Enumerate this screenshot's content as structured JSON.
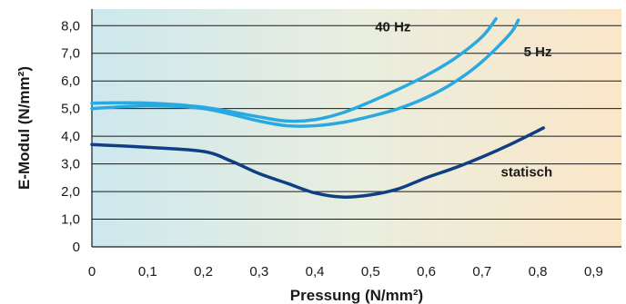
{
  "chart_data": {
    "type": "line",
    "xlabel": "Pressung (N/mm²)",
    "ylabel": "E-Modul (N/mm²)",
    "xlim": [
      0,
      0.95
    ],
    "ylim": [
      0,
      8.6
    ],
    "x_ticks": [
      0,
      0.1,
      0.2,
      0.3,
      0.4,
      0.5,
      0.6,
      0.7,
      0.8,
      0.9
    ],
    "x_tick_labels": [
      "0",
      "0,1",
      "0,2",
      "0,3",
      "0,4",
      "0,5",
      "0,6",
      "0,7",
      "0,8",
      "0,9"
    ],
    "y_ticks": [
      0,
      1,
      2,
      3,
      4,
      5,
      6,
      7,
      8
    ],
    "y_tick_labels": [
      "0",
      "1,0",
      "2,0",
      "3,0",
      "4,0",
      "5,0",
      "6,0",
      "7,0",
      "8,0"
    ],
    "grid": "horizontal",
    "background": "gradient from light blue (left) to light orange (right)",
    "series": [
      {
        "name": "40 Hz",
        "color": "#29a9e0",
        "x": [
          0,
          0.1,
          0.2,
          0.3,
          0.35,
          0.4,
          0.45,
          0.5,
          0.55,
          0.6,
          0.65,
          0.7,
          0.725
        ],
        "y": [
          5.2,
          5.2,
          5.05,
          4.7,
          4.55,
          4.6,
          4.85,
          5.25,
          5.7,
          6.2,
          6.8,
          7.6,
          8.25
        ]
      },
      {
        "name": "5 Hz",
        "color": "#29a9e0",
        "x": [
          0,
          0.1,
          0.2,
          0.3,
          0.35,
          0.4,
          0.45,
          0.5,
          0.55,
          0.6,
          0.65,
          0.7,
          0.75,
          0.765
        ],
        "y": [
          5.0,
          5.1,
          5.0,
          4.55,
          4.38,
          4.38,
          4.5,
          4.72,
          5.0,
          5.4,
          5.95,
          6.7,
          7.7,
          8.2
        ]
      },
      {
        "name": "statisch",
        "color": "#0f3f82",
        "x": [
          0,
          0.1,
          0.2,
          0.25,
          0.3,
          0.35,
          0.4,
          0.45,
          0.5,
          0.55,
          0.6,
          0.65,
          0.7,
          0.75,
          0.81
        ],
        "y": [
          3.7,
          3.6,
          3.45,
          3.1,
          2.65,
          2.3,
          1.95,
          1.8,
          1.88,
          2.1,
          2.5,
          2.85,
          3.25,
          3.7,
          4.3
        ]
      }
    ]
  }
}
